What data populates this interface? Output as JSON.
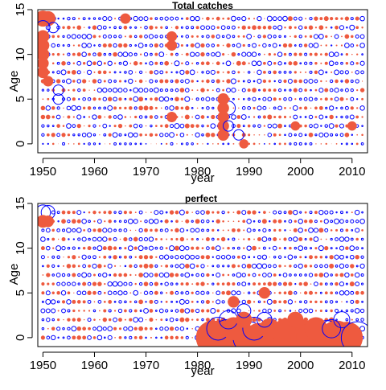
{
  "chart_data": [
    {
      "type": "bubble_residuals",
      "title": "Total catches",
      "xlabel": "year",
      "ylabel": "Age",
      "xlim": [
        1949,
        2013
      ],
      "ylim": [
        -1,
        15
      ],
      "xticks": [
        "1950",
        "1960",
        "1970",
        "1980",
        "1990",
        "2000",
        "2010"
      ],
      "yticks": [
        "0",
        "5",
        "10",
        "15"
      ],
      "x_range": [
        1950,
        2012
      ],
      "ages": [
        0,
        14
      ],
      "legend": "none",
      "grid": false,
      "series": [
        {
          "sign": "positive",
          "color": "#ee5a3f",
          "style": "filled"
        },
        {
          "sign": "negative",
          "color": "#0000ff",
          "style": "open"
        }
      ],
      "highlights": [
        {
          "year": 1950,
          "age": 14,
          "sign": "positive",
          "size": 1.0
        },
        {
          "year": 1951,
          "age": 14,
          "sign": "positive",
          "size": 0.9
        },
        {
          "year": 1950,
          "age": 13,
          "sign": "negative",
          "size": 0.8
        },
        {
          "year": 1952,
          "age": 13,
          "sign": "negative",
          "size": 0.5
        },
        {
          "year": 1950,
          "age": 12,
          "sign": "positive",
          "size": 0.7
        },
        {
          "year": 1950,
          "age": 11,
          "sign": "positive",
          "size": 0.7
        },
        {
          "year": 1950,
          "age": 10,
          "sign": "positive",
          "size": 0.7
        },
        {
          "year": 1950,
          "age": 9,
          "sign": "positive",
          "size": 0.6
        },
        {
          "year": 1950,
          "age": 8,
          "sign": "positive",
          "size": 0.6
        },
        {
          "year": 1951,
          "age": 7,
          "sign": "positive",
          "size": 0.5
        },
        {
          "year": 1953,
          "age": 6,
          "sign": "negative",
          "size": 0.5
        },
        {
          "year": 1953,
          "age": 5,
          "sign": "negative",
          "size": 0.5
        },
        {
          "year": 1966,
          "age": 14,
          "sign": "positive",
          "size": 0.5
        },
        {
          "year": 1975,
          "age": 12,
          "sign": "positive",
          "size": 0.5
        },
        {
          "year": 1975,
          "age": 11,
          "sign": "positive",
          "size": 0.5
        },
        {
          "year": 1975,
          "age": 3,
          "sign": "positive",
          "size": 0.5
        },
        {
          "year": 1985,
          "age": 5,
          "sign": "positive",
          "size": 0.6
        },
        {
          "year": 1985,
          "age": 4,
          "sign": "positive",
          "size": 0.6
        },
        {
          "year": 1985,
          "age": 3,
          "sign": "positive",
          "size": 0.6
        },
        {
          "year": 1985,
          "age": 2,
          "sign": "positive",
          "size": 0.6
        },
        {
          "year": 1985,
          "age": 1,
          "sign": "positive",
          "size": 0.6
        },
        {
          "year": 1986,
          "age": 4,
          "sign": "negative",
          "size": 0.8
        },
        {
          "year": 1986,
          "age": 2,
          "sign": "negative",
          "size": 0.5
        },
        {
          "year": 1988,
          "age": 1,
          "sign": "negative",
          "size": 0.5
        },
        {
          "year": 1989,
          "age": 0,
          "sign": "positive",
          "size": 0.4
        },
        {
          "year": 1999,
          "age": 2,
          "sign": "positive",
          "size": 0.4
        },
        {
          "year": 2010,
          "age": 2,
          "sign": "positive",
          "size": 0.4
        }
      ]
    },
    {
      "type": "bubble_residuals",
      "title": "perfect",
      "xlabel": "year",
      "ylabel": "Age",
      "xlim": [
        1949,
        2013
      ],
      "ylim": [
        -1,
        15
      ],
      "xticks": [
        "1950",
        "1960",
        "1970",
        "1980",
        "1990",
        "2000",
        "2010"
      ],
      "yticks": [
        "0",
        "5",
        "10",
        "15"
      ],
      "x_range": [
        1950,
        2012
      ],
      "ages": [
        0,
        14
      ],
      "legend": "none",
      "grid": false,
      "series": [
        {
          "sign": "positive",
          "color": "#ee5a3f",
          "style": "filled"
        },
        {
          "sign": "negative",
          "color": "#0000ff",
          "style": "open"
        }
      ],
      "highlights": [
        {
          "year": 1950,
          "age": 14,
          "sign": "negative",
          "size": 0.9
        },
        {
          "year": 1951,
          "age": 14,
          "sign": "negative",
          "size": 0.8
        },
        {
          "year": 1950,
          "age": 13,
          "sign": "positive",
          "size": 0.7
        },
        {
          "year": 1951,
          "age": 13,
          "sign": "positive",
          "size": 0.6
        },
        {
          "year": 1983,
          "age": 0,
          "sign": "positive",
          "size": 2.6
        },
        {
          "year": 1985,
          "age": 0,
          "sign": "positive",
          "size": 2.8
        },
        {
          "year": 1986,
          "age": 0,
          "sign": "negative",
          "size": 2.8
        },
        {
          "year": 1988,
          "age": 0,
          "sign": "positive",
          "size": 2.6
        },
        {
          "year": 1990,
          "age": 0,
          "sign": "negative",
          "size": 2.4
        },
        {
          "year": 1992,
          "age": 0,
          "sign": "positive",
          "size": 2.2
        },
        {
          "year": 1995,
          "age": 0,
          "sign": "positive",
          "size": 2.4
        },
        {
          "year": 1998,
          "age": 0,
          "sign": "negative",
          "size": 2.8
        },
        {
          "year": 2000,
          "age": 0,
          "sign": "positive",
          "size": 2.8
        },
        {
          "year": 2002,
          "age": 0,
          "sign": "positive",
          "size": 2.2
        },
        {
          "year": 2005,
          "age": 0,
          "sign": "negative",
          "size": 2.6
        },
        {
          "year": 2007,
          "age": 0,
          "sign": "positive",
          "size": 2.6
        },
        {
          "year": 2009,
          "age": 0,
          "sign": "positive",
          "size": 2.4
        },
        {
          "year": 2011,
          "age": 0,
          "sign": "negative",
          "size": 2.4
        },
        {
          "year": 1984,
          "age": 1,
          "sign": "negative",
          "size": 1.6
        },
        {
          "year": 1987,
          "age": 1,
          "sign": "positive",
          "size": 1.6
        },
        {
          "year": 1991,
          "age": 1,
          "sign": "negative",
          "size": 1.6
        },
        {
          "year": 1994,
          "age": 1,
          "sign": "positive",
          "size": 1.4
        },
        {
          "year": 1997,
          "age": 1,
          "sign": "positive",
          "size": 1.4
        },
        {
          "year": 2003,
          "age": 1,
          "sign": "positive",
          "size": 1.6
        },
        {
          "year": 2006,
          "age": 1,
          "sign": "negative",
          "size": 1.2
        },
        {
          "year": 1986,
          "age": 2,
          "sign": "negative",
          "size": 1.2
        },
        {
          "year": 1989,
          "age": 2,
          "sign": "positive",
          "size": 1.0
        },
        {
          "year": 1993,
          "age": 2,
          "sign": "negative",
          "size": 0.9
        },
        {
          "year": 1999,
          "age": 2,
          "sign": "positive",
          "size": 1.0
        },
        {
          "year": 2008,
          "age": 2,
          "sign": "negative",
          "size": 1.0
        },
        {
          "year": 1989,
          "age": 3,
          "sign": "negative",
          "size": 0.8
        },
        {
          "year": 1987,
          "age": 4,
          "sign": "positive",
          "size": 0.6
        },
        {
          "year": 1993,
          "age": 5,
          "sign": "positive",
          "size": 0.6
        }
      ]
    }
  ]
}
